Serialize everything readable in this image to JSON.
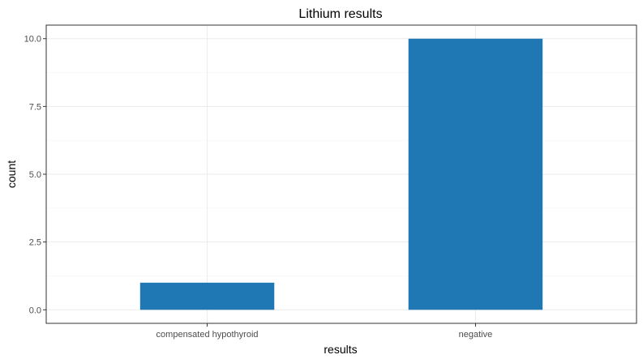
{
  "chart_data": {
    "type": "bar",
    "title": "Lithium results",
    "xlabel": "results",
    "ylabel": "count",
    "categories": [
      "compensated hypothyroid",
      "negative"
    ],
    "values": [
      1,
      10
    ],
    "ylim": [
      -0.5,
      10.5
    ],
    "yticks": [
      0,
      2.5,
      5,
      7.5,
      10
    ],
    "ytick_labels": [
      "0.0",
      "2.5",
      "5.0",
      "7.5",
      "10.0"
    ],
    "grid": true,
    "bar_color": "#1f77b4",
    "legend": "none"
  }
}
